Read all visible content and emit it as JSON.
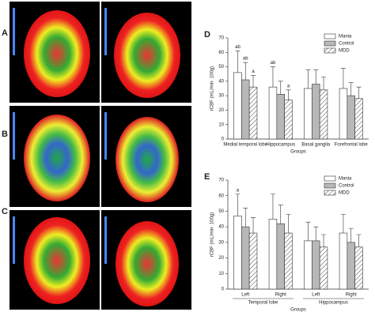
{
  "panel_labels": [
    "A",
    "B",
    "C"
  ],
  "chart_data": [
    {
      "type": "bar",
      "label": "D",
      "ylabel": "rCBF (mL/min· 100g)",
      "xlabel": "Groups",
      "categories": [
        "Medial temporal lobe",
        "Hippocampus",
        "Basal ganglia",
        "Forefrontal lobe"
      ],
      "series": [
        {
          "name": "Mania",
          "color": "#ffffff",
          "values": [
            46,
            36,
            35,
            35
          ],
          "errors": [
            15,
            14,
            13,
            14
          ]
        },
        {
          "name": "Control",
          "color": "#b8b8b8",
          "values": [
            41,
            31,
            38,
            30
          ],
          "errors": [
            12,
            9,
            10,
            9
          ]
        },
        {
          "name": "MDD",
          "color": "#ffffff",
          "pattern": "hatch",
          "values": [
            36,
            27,
            34,
            28
          ],
          "errors": [
            8,
            7,
            9,
            8
          ]
        }
      ],
      "annotations": [
        {
          "text": "ab",
          "series": 0,
          "category": 0
        },
        {
          "text": "ab",
          "series": 1,
          "category": 0
        },
        {
          "text": "a",
          "series": 2,
          "category": 0
        },
        {
          "text": "ab",
          "series": 0,
          "category": 1
        },
        {
          "text": "a",
          "series": 2,
          "category": 1
        }
      ],
      "ylim": [
        0,
        70
      ],
      "yticks": [
        0,
        10,
        20,
        30,
        40,
        50,
        60,
        70
      ]
    },
    {
      "type": "bar",
      "label": "E",
      "ylabel": "rCBF (mL/min· 100g)",
      "xlabel": "Groups",
      "categories": [
        "Left",
        "Right",
        "Left",
        "Right"
      ],
      "groups": [
        "Temporal lobe",
        "Hippocampus"
      ],
      "series": [
        {
          "name": "Mania",
          "color": "#ffffff",
          "values": [
            47,
            45,
            31,
            36
          ],
          "errors": [
            14,
            16,
            12,
            12
          ]
        },
        {
          "name": "Control",
          "color": "#b8b8b8",
          "values": [
            40,
            42,
            31,
            30
          ],
          "errors": [
            12,
            12,
            9,
            9
          ]
        },
        {
          "name": "MDD",
          "color": "#ffffff",
          "pattern": "hatch",
          "values": [
            36,
            36,
            27,
            27
          ],
          "errors": [
            10,
            12,
            8,
            8
          ]
        }
      ],
      "annotations": [
        {
          "text": "a",
          "series": 0,
          "category": 0
        }
      ],
      "ylim": [
        0,
        70
      ],
      "yticks": [
        0,
        10,
        20,
        30,
        40,
        50,
        60,
        70
      ]
    }
  ]
}
